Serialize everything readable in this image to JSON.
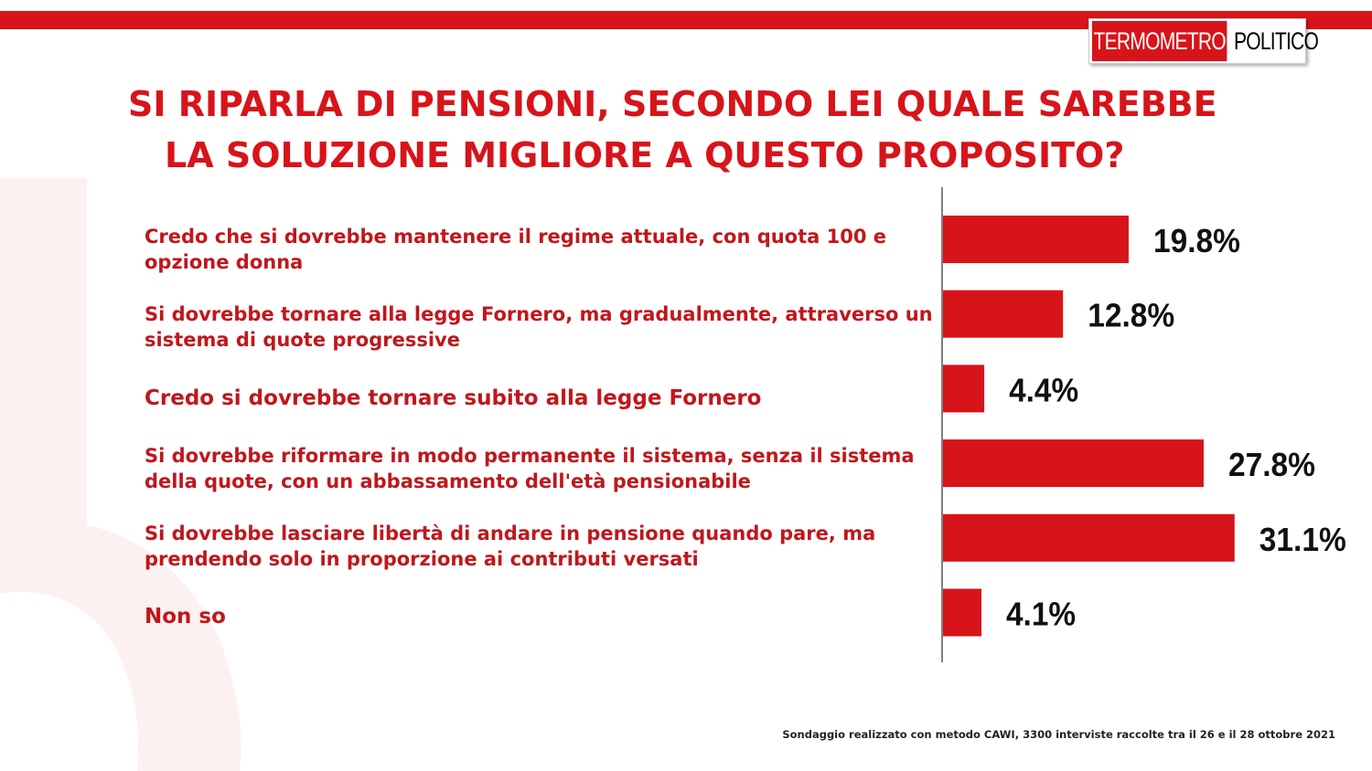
{
  "brand": {
    "name_red": "TERMOMETRO",
    "name_black": "POLITICO"
  },
  "title_lines": [
    "SI RIPARLA DI PENSIONI, SECONDO LEI QUALE SAREBBE",
    "LA SOLUZIONE MIGLIORE A QUESTO PROPOSITO?"
  ],
  "source_note": "Sondaggio realizzato con metodo CAWI, 3300 interviste raccolte tra il 26 e il 28 ottobre 2021",
  "colors": {
    "accent": "#d7141a",
    "bar": "#d7141a",
    "label_text": "#c0171c"
  },
  "chart_data": {
    "type": "bar",
    "orientation": "horizontal",
    "categories": [
      "Credo che si dovrebbe mantenere il regime attuale, con quota 100 e opzione donna",
      "Si dovrebbe tornare alla legge Fornero, ma gradualmente, attraverso un sistema di quote progressive",
      "Credo si dovrebbe tornare subito alla legge Fornero",
      "Si dovrebbe riformare in modo permanente il sistema, senza il sistema della quote, con un abbassamento dell'età  pensionabile",
      "Si dovrebbe lasciare libertà di andare in pensione quando pare, ma prendendo solo in proporzione ai contributi versati",
      "Non so"
    ],
    "values": [
      19.8,
      12.8,
      4.4,
      27.8,
      31.1,
      4.1
    ],
    "value_labels": [
      "19.8%",
      "12.8%",
      "4.4%",
      "27.8%",
      "31.1%",
      "4.1%"
    ],
    "unit": "%",
    "xlim": [
      0,
      35
    ],
    "grid": false,
    "legend": "none"
  }
}
